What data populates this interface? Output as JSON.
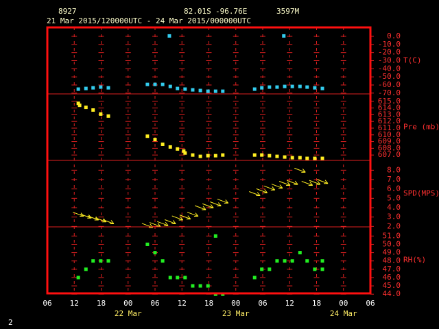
{
  "header": {
    "station": "8927",
    "lat": "82.01S",
    "lon": "-96.76E",
    "elev": "3597M",
    "period": "21 Mar 2015/120000UTC - 24 Mar 2015/000000UTC",
    "page": "2"
  },
  "x_axis": {
    "xlim": [
      6,
      78
    ],
    "xticks": [
      {
        "value": 6,
        "label": "06"
      },
      12,
      18,
      {
        "value": 24,
        "label": "00"
      },
      {
        "value": 30,
        "label": "06"
      },
      {
        "value": 36,
        "label": "12"
      },
      {
        "value": 42,
        "label": "18"
      },
      {
        "value": 48,
        "label": "00"
      },
      {
        "value": 54,
        "label": "06"
      },
      {
        "value": 60,
        "label": "12"
      },
      {
        "value": 66,
        "label": "18"
      },
      {
        "value": 72,
        "label": "00"
      },
      {
        "value": 78,
        "label": "06"
      }
    ],
    "date_labels": [
      {
        "value": 24,
        "label": "22 Mar"
      },
      {
        "value": 48,
        "label": "23 Mar"
      },
      {
        "value": 72,
        "label": "24 Mar"
      }
    ]
  },
  "chart_data": [
    {
      "type": "scatter",
      "ylabel": "T(C)",
      "color": "#33ccee",
      "ylim": [
        -71,
        11
      ],
      "yticks": [
        {
          "value": 0,
          "label": "0.0"
        },
        {
          "value": -10,
          "label": "-10.0"
        },
        {
          "value": -20,
          "label": "-20.0"
        },
        {
          "value": -30,
          "label": "-30.0"
        },
        {
          "value": -40,
          "label": "-40.0"
        },
        {
          "value": -50,
          "label": "-50.0"
        },
        {
          "value": -60,
          "label": "-60.0"
        },
        {
          "value": -70,
          "label": "-70.0"
        }
      ],
      "x": [
        12.9,
        14.6,
        16.2,
        17.9,
        19.6,
        28.3,
        30.0,
        31.7,
        33.2,
        33.4,
        35.0,
        36.7,
        38.4,
        40.1,
        41.8,
        43.5,
        45.1,
        52.2,
        53.8,
        55.5,
        57.2,
        58.7,
        58.9,
        60.6,
        62.3,
        63.9,
        65.6,
        67.3
      ],
      "values": [
        -65.1,
        -64.3,
        -63.5,
        -62.6,
        -63.5,
        -59.3,
        -59.3,
        -59.3,
        0.5,
        -61.8,
        -64.3,
        -65.1,
        -66.0,
        -66.8,
        -67.7,
        -67.7,
        -67.7,
        -65.1,
        -63.5,
        -62.6,
        -62.6,
        0.5,
        -61.8,
        -61.8,
        -61.8,
        -62.6,
        -63.5,
        -64.3
      ]
    },
    {
      "type": "scatter",
      "ylabel": "Pre (mb)",
      "color": "#ffee22",
      "ylim": [
        606.2,
        616.1
      ],
      "yticks": [
        {
          "value": 615,
          "label": "615.0"
        },
        {
          "value": 614,
          "label": "614.0"
        },
        {
          "value": 613,
          "label": "613.0"
        },
        {
          "value": 612,
          "label": "612.0"
        },
        {
          "value": 611,
          "label": "611.0"
        },
        {
          "value": 610,
          "label": "610.0"
        },
        {
          "value": 609,
          "label": "609.0"
        },
        {
          "value": 608,
          "label": "608.0"
        },
        {
          "value": 607,
          "label": "607.0"
        }
      ],
      "x": [
        12.9,
        13.2,
        14.6,
        16.2,
        17.9,
        19.6,
        28.3,
        30.0,
        31.7,
        33.4,
        35.0,
        36.4,
        36.7,
        38.4,
        40.1,
        41.8,
        43.5,
        45.1,
        52.2,
        53.8,
        55.5,
        57.2,
        58.9,
        60.6,
        62.3,
        63.9,
        65.6,
        67.3
      ],
      "values": [
        614.7,
        614.4,
        614.1,
        613.7,
        613.1,
        612.8,
        609.8,
        609.3,
        608.6,
        608.2,
        607.9,
        607.6,
        607.3,
        607.0,
        606.8,
        606.9,
        606.9,
        607.0,
        607.0,
        607.0,
        606.9,
        606.8,
        606.7,
        606.6,
        606.6,
        606.5,
        606.5,
        606.5
      ]
    },
    {
      "type": "wind",
      "ylabel": "SPD(MPS)",
      "color": "#ffee22",
      "ylim": [
        1.95,
        9.05
      ],
      "yticks": [
        {
          "value": 8,
          "label": "8.0"
        },
        {
          "value": 7,
          "label": "7.0"
        },
        {
          "value": 6,
          "label": "6.0"
        },
        {
          "value": 5,
          "label": "5.0"
        },
        {
          "value": 4,
          "label": "4.0"
        },
        {
          "value": 3,
          "label": "3.0"
        },
        {
          "value": 2,
          "label": "2.0"
        }
      ],
      "x": [
        12.9,
        14.6,
        16.2,
        17.9,
        19.6,
        28.3,
        30.0,
        31.7,
        33.4,
        35.0,
        36.7,
        38.4,
        40.1,
        41.8,
        43.5,
        45.1,
        52.2,
        53.8,
        55.5,
        57.2,
        58.9,
        60.6,
        62.3,
        63.9,
        65.6,
        67.3
      ],
      "values": [
        3.3,
        3.1,
        2.9,
        2.7,
        2.5,
        2.1,
        2.2,
        2.3,
        2.5,
        2.9,
        3.0,
        3.3,
        4.0,
        4.2,
        4.4,
        4.7,
        5.5,
        5.8,
        6.1,
        6.3,
        6.6,
        6.7,
        8.0,
        6.6,
        6.7,
        6.8
      ]
    },
    {
      "type": "scatter",
      "ylabel": "RH(%)",
      "color": "#22ee22",
      "ylim": [
        44.1,
        52.1
      ],
      "yticks": [
        {
          "value": 51,
          "label": "51.0"
        },
        {
          "value": 50,
          "label": "50.0"
        },
        {
          "value": 49,
          "label": "49.0"
        },
        {
          "value": 48,
          "label": "48.0"
        },
        {
          "value": 47,
          "label": "47.0"
        },
        {
          "value": 46,
          "label": "46.0"
        },
        {
          "value": 45,
          "label": "45.0"
        },
        {
          "value": 44,
          "label": "44.0"
        }
      ],
      "x": [
        12.9,
        14.6,
        16.2,
        17.9,
        19.6,
        28.3,
        30.0,
        31.7,
        33.4,
        35.0,
        36.7,
        38.4,
        40.1,
        41.8,
        43.5,
        43.5,
        45.1,
        52.2,
        53.8,
        55.5,
        57.2,
        58.9,
        60.6,
        62.3,
        63.9,
        65.6,
        67.3,
        67.3
      ],
      "values": [
        46,
        47,
        48,
        48,
        48,
        50,
        49,
        48,
        46,
        46,
        46,
        45,
        45,
        45,
        51,
        44,
        44,
        46,
        47,
        47,
        48,
        48,
        48,
        49,
        48,
        47,
        47,
        48
      ]
    }
  ]
}
